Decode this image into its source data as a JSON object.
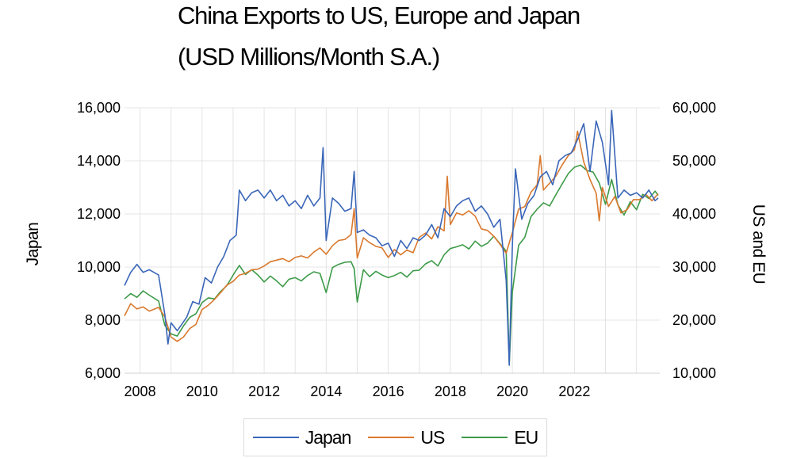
{
  "title_line1": "China Exports to US, Europe and Japan",
  "title_line2": "(USD Millions/Month S.A.)",
  "colors": {
    "Japan": "#3a66b8",
    "US": "#d9792e",
    "EU": "#3c9a47",
    "grid": "#e4e4e4"
  },
  "chart_data": {
    "type": "line",
    "title": "China Exports to US, Europe and Japan (USD Millions/Month S.A.)",
    "xlabel": "",
    "x_ticks": [
      "2008",
      "2010",
      "2012",
      "2014",
      "2016",
      "2018",
      "2020",
      "2022"
    ],
    "xlim": [
      2007.5,
      2024.0
    ],
    "y_left": {
      "label": "Japan",
      "lim": [
        6000,
        16000
      ],
      "ticks": [
        "6,000",
        "8,000",
        "10,000",
        "12,000",
        "14,000",
        "16,000"
      ]
    },
    "y_right": {
      "label": "US and EU",
      "lim": [
        10000,
        60000
      ],
      "ticks": [
        "10,000",
        "20,000",
        "30,000",
        "40,000",
        "50,000",
        "60,000"
      ]
    },
    "legend_position": "bottom-center",
    "series": [
      {
        "name": "Japan",
        "axis": "left",
        "color": "#3a66b8",
        "points": [
          [
            2007.5,
            9300
          ],
          [
            2007.7,
            9800
          ],
          [
            2007.9,
            10100
          ],
          [
            2008.1,
            9800
          ],
          [
            2008.3,
            9900
          ],
          [
            2008.6,
            9700
          ],
          [
            2008.8,
            8200
          ],
          [
            2008.9,
            7100
          ],
          [
            2009.0,
            7900
          ],
          [
            2009.2,
            7600
          ],
          [
            2009.5,
            8100
          ],
          [
            2009.7,
            8700
          ],
          [
            2009.9,
            8600
          ],
          [
            2010.1,
            9600
          ],
          [
            2010.3,
            9400
          ],
          [
            2010.5,
            10000
          ],
          [
            2010.7,
            10400
          ],
          [
            2010.9,
            11000
          ],
          [
            2011.1,
            11200
          ],
          [
            2011.2,
            12900
          ],
          [
            2011.4,
            12500
          ],
          [
            2011.6,
            12800
          ],
          [
            2011.8,
            12900
          ],
          [
            2012.0,
            12600
          ],
          [
            2012.2,
            12900
          ],
          [
            2012.4,
            12500
          ],
          [
            2012.6,
            12700
          ],
          [
            2012.8,
            12300
          ],
          [
            2013.0,
            12500
          ],
          [
            2013.2,
            12200
          ],
          [
            2013.4,
            12700
          ],
          [
            2013.6,
            12300
          ],
          [
            2013.8,
            12600
          ],
          [
            2013.9,
            14500
          ],
          [
            2014.0,
            11000
          ],
          [
            2014.2,
            12600
          ],
          [
            2014.4,
            12400
          ],
          [
            2014.6,
            12100
          ],
          [
            2014.8,
            12200
          ],
          [
            2014.9,
            13600
          ],
          [
            2015.0,
            11300
          ],
          [
            2015.2,
            11400
          ],
          [
            2015.4,
            11200
          ],
          [
            2015.6,
            11100
          ],
          [
            2015.8,
            10800
          ],
          [
            2016.0,
            10900
          ],
          [
            2016.2,
            10400
          ],
          [
            2016.4,
            11000
          ],
          [
            2016.6,
            10700
          ],
          [
            2016.8,
            11100
          ],
          [
            2017.0,
            11000
          ],
          [
            2017.2,
            11200
          ],
          [
            2017.4,
            11600
          ],
          [
            2017.6,
            11100
          ],
          [
            2017.8,
            12200
          ],
          [
            2018.0,
            11900
          ],
          [
            2018.2,
            12300
          ],
          [
            2018.4,
            12500
          ],
          [
            2018.6,
            12600
          ],
          [
            2018.8,
            12100
          ],
          [
            2019.0,
            12300
          ],
          [
            2019.2,
            12000
          ],
          [
            2019.4,
            11500
          ],
          [
            2019.6,
            11800
          ],
          [
            2019.8,
            9500
          ],
          [
            2019.9,
            6300
          ],
          [
            2020.0,
            10800
          ],
          [
            2020.1,
            13700
          ],
          [
            2020.3,
            11800
          ],
          [
            2020.5,
            12400
          ],
          [
            2020.7,
            12700
          ],
          [
            2020.9,
            13400
          ],
          [
            2021.1,
            13600
          ],
          [
            2021.3,
            13100
          ],
          [
            2021.5,
            14000
          ],
          [
            2021.7,
            14200
          ],
          [
            2021.9,
            14300
          ],
          [
            2022.1,
            14800
          ],
          [
            2022.3,
            15400
          ],
          [
            2022.5,
            13600
          ],
          [
            2022.7,
            15500
          ],
          [
            2022.9,
            14700
          ],
          [
            2023.1,
            13100
          ],
          [
            2023.2,
            15900
          ],
          [
            2023.4,
            12600
          ],
          [
            2023.6,
            12900
          ],
          [
            2023.8,
            12700
          ],
          [
            2024.0,
            12800
          ],
          [
            2024.2,
            12600
          ],
          [
            2024.4,
            12900
          ],
          [
            2024.6,
            12500
          ],
          [
            2024.7,
            12600
          ]
        ]
      },
      {
        "name": "US",
        "axis": "right",
        "color": "#d9792e",
        "points": [
          [
            2007.5,
            20800
          ],
          [
            2007.7,
            23100
          ],
          [
            2007.9,
            22100
          ],
          [
            2008.1,
            22500
          ],
          [
            2008.3,
            21700
          ],
          [
            2008.6,
            22400
          ],
          [
            2008.8,
            20600
          ],
          [
            2009.0,
            16800
          ],
          [
            2009.2,
            16000
          ],
          [
            2009.4,
            16800
          ],
          [
            2009.6,
            18400
          ],
          [
            2009.8,
            19200
          ],
          [
            2010.0,
            22000
          ],
          [
            2010.2,
            22800
          ],
          [
            2010.4,
            23900
          ],
          [
            2010.6,
            25200
          ],
          [
            2010.8,
            26600
          ],
          [
            2011.0,
            27300
          ],
          [
            2011.2,
            28500
          ],
          [
            2011.4,
            28800
          ],
          [
            2011.6,
            29500
          ],
          [
            2011.8,
            29600
          ],
          [
            2012.0,
            30200
          ],
          [
            2012.2,
            31000
          ],
          [
            2012.4,
            31300
          ],
          [
            2012.6,
            31600
          ],
          [
            2012.8,
            31000
          ],
          [
            2013.0,
            31800
          ],
          [
            2013.2,
            32100
          ],
          [
            2013.4,
            31700
          ],
          [
            2013.6,
            32800
          ],
          [
            2013.8,
            33600
          ],
          [
            2014.0,
            32400
          ],
          [
            2014.2,
            34000
          ],
          [
            2014.4,
            35000
          ],
          [
            2014.6,
            35200
          ],
          [
            2014.8,
            36100
          ],
          [
            2014.9,
            41000
          ],
          [
            2015.0,
            31700
          ],
          [
            2015.2,
            35500
          ],
          [
            2015.4,
            34600
          ],
          [
            2015.6,
            33900
          ],
          [
            2015.8,
            33600
          ],
          [
            2016.0,
            31800
          ],
          [
            2016.2,
            33300
          ],
          [
            2016.4,
            32300
          ],
          [
            2016.6,
            33200
          ],
          [
            2016.8,
            32700
          ],
          [
            2017.0,
            35600
          ],
          [
            2017.2,
            36400
          ],
          [
            2017.4,
            35300
          ],
          [
            2017.6,
            37600
          ],
          [
            2017.8,
            36800
          ],
          [
            2017.9,
            47100
          ],
          [
            2018.0,
            38000
          ],
          [
            2018.2,
            40200
          ],
          [
            2018.4,
            39800
          ],
          [
            2018.6,
            40600
          ],
          [
            2018.8,
            39600
          ],
          [
            2019.0,
            37200
          ],
          [
            2019.2,
            36900
          ],
          [
            2019.4,
            35800
          ],
          [
            2019.6,
            34300
          ],
          [
            2019.8,
            32600
          ],
          [
            2020.0,
            36500
          ],
          [
            2020.2,
            40900
          ],
          [
            2020.4,
            41400
          ],
          [
            2020.6,
            44100
          ],
          [
            2020.8,
            45500
          ],
          [
            2020.9,
            51000
          ],
          [
            2021.0,
            44500
          ],
          [
            2021.2,
            45800
          ],
          [
            2021.4,
            47100
          ],
          [
            2021.6,
            49200
          ],
          [
            2021.8,
            51000
          ],
          [
            2022.0,
            52100
          ],
          [
            2022.1,
            55600
          ],
          [
            2022.3,
            49800
          ],
          [
            2022.5,
            46500
          ],
          [
            2022.7,
            43900
          ],
          [
            2022.8,
            38700
          ],
          [
            2022.9,
            45000
          ],
          [
            2023.1,
            41400
          ],
          [
            2023.3,
            43300
          ],
          [
            2023.5,
            40200
          ],
          [
            2023.7,
            40800
          ],
          [
            2023.9,
            42700
          ],
          [
            2024.1,
            42700
          ],
          [
            2024.3,
            43700
          ],
          [
            2024.5,
            42500
          ],
          [
            2024.7,
            43800
          ]
        ]
      },
      {
        "name": "EU",
        "axis": "right",
        "color": "#3c9a47",
        "points": [
          [
            2007.5,
            24000
          ],
          [
            2007.7,
            25000
          ],
          [
            2007.9,
            24300
          ],
          [
            2008.1,
            25500
          ],
          [
            2008.3,
            24700
          ],
          [
            2008.6,
            23600
          ],
          [
            2008.8,
            19000
          ],
          [
            2009.0,
            17400
          ],
          [
            2009.2,
            17000
          ],
          [
            2009.4,
            18900
          ],
          [
            2009.6,
            20500
          ],
          [
            2009.8,
            21200
          ],
          [
            2010.0,
            23300
          ],
          [
            2010.2,
            24200
          ],
          [
            2010.4,
            24000
          ],
          [
            2010.6,
            25400
          ],
          [
            2010.8,
            26500
          ],
          [
            2011.0,
            28500
          ],
          [
            2011.2,
            30300
          ],
          [
            2011.4,
            28600
          ],
          [
            2011.6,
            29500
          ],
          [
            2011.8,
            28500
          ],
          [
            2012.0,
            27200
          ],
          [
            2012.2,
            28300
          ],
          [
            2012.4,
            27400
          ],
          [
            2012.6,
            26300
          ],
          [
            2012.8,
            27700
          ],
          [
            2013.0,
            28000
          ],
          [
            2013.2,
            27400
          ],
          [
            2013.4,
            28400
          ],
          [
            2013.6,
            29100
          ],
          [
            2013.8,
            28800
          ],
          [
            2014.0,
            25200
          ],
          [
            2014.2,
            29900
          ],
          [
            2014.4,
            30500
          ],
          [
            2014.6,
            30900
          ],
          [
            2014.8,
            31000
          ],
          [
            2014.9,
            29700
          ],
          [
            2015.0,
            23400
          ],
          [
            2015.2,
            29500
          ],
          [
            2015.4,
            28200
          ],
          [
            2015.6,
            29200
          ],
          [
            2015.8,
            28500
          ],
          [
            2016.0,
            28000
          ],
          [
            2016.2,
            28400
          ],
          [
            2016.4,
            29000
          ],
          [
            2016.6,
            28100
          ],
          [
            2016.8,
            29300
          ],
          [
            2017.0,
            29400
          ],
          [
            2017.2,
            30600
          ],
          [
            2017.4,
            31200
          ],
          [
            2017.6,
            30200
          ],
          [
            2017.8,
            32300
          ],
          [
            2018.0,
            33500
          ],
          [
            2018.2,
            33800
          ],
          [
            2018.4,
            34200
          ],
          [
            2018.6,
            33400
          ],
          [
            2018.8,
            34900
          ],
          [
            2019.0,
            33900
          ],
          [
            2019.2,
            34500
          ],
          [
            2019.4,
            35800
          ],
          [
            2019.6,
            34400
          ],
          [
            2019.8,
            33000
          ],
          [
            2019.9,
            11800
          ],
          [
            2020.0,
            25300
          ],
          [
            2020.2,
            34100
          ],
          [
            2020.4,
            35600
          ],
          [
            2020.6,
            39500
          ],
          [
            2020.8,
            40900
          ],
          [
            2021.0,
            42100
          ],
          [
            2021.2,
            41500
          ],
          [
            2021.4,
            43600
          ],
          [
            2021.6,
            45600
          ],
          [
            2021.8,
            47600
          ],
          [
            2022.0,
            48800
          ],
          [
            2022.2,
            49200
          ],
          [
            2022.4,
            48200
          ],
          [
            2022.6,
            47900
          ],
          [
            2022.8,
            45800
          ],
          [
            2023.0,
            41800
          ],
          [
            2023.2,
            46500
          ],
          [
            2023.4,
            41700
          ],
          [
            2023.6,
            39800
          ],
          [
            2023.8,
            42300
          ],
          [
            2024.0,
            40800
          ],
          [
            2024.2,
            43700
          ],
          [
            2024.4,
            42900
          ],
          [
            2024.6,
            44300
          ],
          [
            2024.7,
            43500
          ]
        ]
      }
    ]
  }
}
